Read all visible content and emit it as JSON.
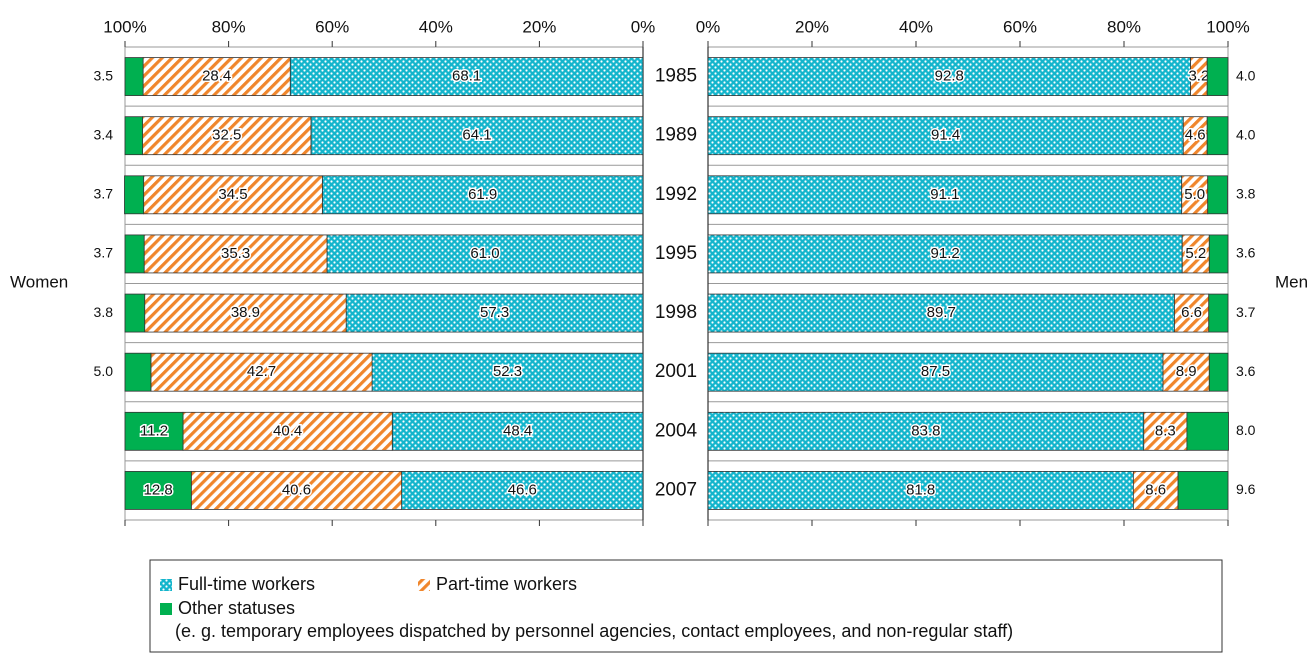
{
  "chart_data": {
    "type": "bar",
    "categories": [
      "1985",
      "1989",
      "1992",
      "1995",
      "1998",
      "2001",
      "2004",
      "2007"
    ],
    "series": [
      {
        "name": "Full-time workers",
        "color": "#13b5cc"
      },
      {
        "name": "Part-time workers",
        "color": "#f0862c"
      },
      {
        "name": "Other statuses",
        "color": "#00b050"
      }
    ],
    "legend_note": "(e. g. temporary employees dispatched by personnel agencies, contact employees, and non-regular staff)",
    "panels": [
      {
        "label": "Women",
        "reversed": true,
        "xlim": [
          0,
          100
        ],
        "xticks": [
          {
            "value": 0,
            "label": "0%"
          },
          {
            "value": 20,
            "label": "20%"
          },
          {
            "value": 40,
            "label": "40%"
          },
          {
            "value": 60,
            "label": "60%"
          },
          {
            "value": 80,
            "label": "80%"
          },
          {
            "value": 100,
            "label": "100%"
          }
        ],
        "values": [
          [
            68.1,
            64.1,
            61.9,
            61.0,
            57.3,
            52.3,
            48.4,
            46.6
          ],
          [
            28.4,
            32.5,
            34.5,
            35.3,
            38.9,
            42.7,
            40.4,
            40.6
          ],
          [
            3.5,
            3.4,
            3.7,
            3.7,
            3.8,
            5.0,
            11.2,
            12.8
          ]
        ],
        "value_labels": [
          [
            "68.1",
            "64.1",
            "61.9",
            "61.0",
            "57.3",
            "52.3",
            "48.4",
            "46.6"
          ],
          [
            "28.4",
            "32.5",
            "34.5",
            "35.3",
            "38.9",
            "42.7",
            "40.4",
            "40.6"
          ],
          [
            "3.5",
            "3.4",
            "3.7",
            "3.7",
            "3.8",
            "5.0",
            "11.2",
            "12.8"
          ]
        ]
      },
      {
        "label": "Men",
        "reversed": false,
        "xlim": [
          0,
          100
        ],
        "xticks": [
          {
            "value": 0,
            "label": "0%"
          },
          {
            "value": 20,
            "label": "20%"
          },
          {
            "value": 40,
            "label": "40%"
          },
          {
            "value": 60,
            "label": "60%"
          },
          {
            "value": 80,
            "label": "80%"
          },
          {
            "value": 100,
            "label": "100%"
          }
        ],
        "values": [
          [
            92.8,
            91.4,
            91.1,
            91.2,
            89.7,
            87.5,
            83.8,
            81.8
          ],
          [
            3.2,
            4.6,
            5.0,
            5.2,
            6.6,
            8.9,
            8.3,
            8.6
          ],
          [
            4.0,
            4.0,
            3.8,
            3.6,
            3.7,
            3.6,
            8.0,
            9.6
          ]
        ],
        "value_labels": [
          [
            "92.8",
            "91.4",
            "91.1",
            "91.2",
            "89.7",
            "87.5",
            "83.8",
            "81.8"
          ],
          [
            "3.2",
            "4.6",
            "5.0",
            "5.2",
            "6.6",
            "8.9",
            "8.3",
            "8.6"
          ],
          [
            "4.0",
            "4.0",
            "3.8",
            "3.6",
            "3.7",
            "3.6",
            "8.0",
            "9.6"
          ]
        ]
      }
    ]
  }
}
